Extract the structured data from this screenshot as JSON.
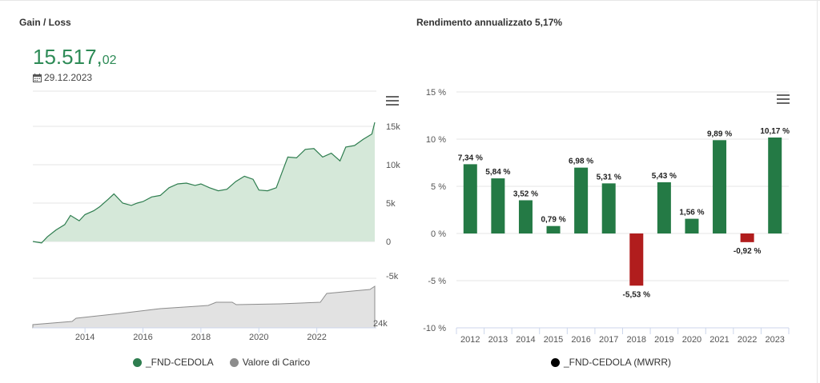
{
  "left_panel": {
    "title": "Gain / Loss",
    "value_int": "15.517,",
    "value_dec": "02",
    "date": "29.12.2023",
    "legend": [
      {
        "label": "_FND-CEDOLA",
        "color": "#2e7d4f"
      },
      {
        "label": "Valore di Carico",
        "color": "#8c8c8c"
      }
    ]
  },
  "right_panel": {
    "title": "Rendimento annualizzato 5,17%",
    "legend": [
      {
        "label": "_FND-CEDOLA (MWRR)",
        "color": "#000000"
      }
    ]
  },
  "chart_data": [
    {
      "type": "area",
      "title": "Gain / Loss",
      "x_ticks": [
        "2014",
        "2016",
        "2018",
        "2020",
        "2022"
      ],
      "y_ticks": [
        "15k",
        "10k",
        "5k",
        "0",
        "-5k"
      ],
      "ylim": [
        -5000,
        15000
      ],
      "xlim": [
        2012.2,
        2024.0
      ],
      "series": [
        {
          "name": "_FND-CEDOLA",
          "color": "#2e7d4f",
          "x": [
            2012.2,
            2012.5,
            2012.7,
            2013.0,
            2013.3,
            2013.5,
            2013.8,
            2014.0,
            2014.3,
            2014.5,
            2014.8,
            2015.0,
            2015.3,
            2015.6,
            2015.8,
            2016.0,
            2016.3,
            2016.6,
            2016.9,
            2017.2,
            2017.5,
            2017.8,
            2018.0,
            2018.3,
            2018.6,
            2018.9,
            2019.2,
            2019.5,
            2019.8,
            2020.0,
            2020.3,
            2020.6,
            2020.8,
            2021.0,
            2021.3,
            2021.6,
            2021.9,
            2022.2,
            2022.5,
            2022.8,
            2023.0,
            2023.3,
            2023.6,
            2023.9,
            2024.0
          ],
          "values": [
            0,
            -200,
            600,
            1500,
            2200,
            3400,
            2700,
            3500,
            4000,
            4500,
            5500,
            6200,
            5000,
            4700,
            5000,
            5200,
            5800,
            6000,
            7000,
            7500,
            7600,
            7300,
            7500,
            7000,
            6600,
            6800,
            7800,
            8500,
            8100,
            6700,
            6600,
            7000,
            9000,
            11000,
            10900,
            12000,
            12100,
            11000,
            11500,
            10500,
            12300,
            12500,
            13300,
            14000,
            15517
          ]
        },
        {
          "name": "Valore di Carico",
          "color": "#8c8c8c",
          "values_label": "24k"
        }
      ]
    },
    {
      "type": "bar",
      "title": "Rendimento annualizzato 5,17%",
      "categories": [
        "2012",
        "2013",
        "2014",
        "2015",
        "2016",
        "2017",
        "2018",
        "2019",
        "2020",
        "2021",
        "2022",
        "2023"
      ],
      "values": [
        7.34,
        5.84,
        3.52,
        0.79,
        6.98,
        5.31,
        -5.53,
        5.43,
        1.56,
        9.89,
        -0.92,
        10.17
      ],
      "labels": [
        "7,34 %",
        "5,84 %",
        "3,52 %",
        "0,79 %",
        "6,98 %",
        "5,31 %",
        "-5,53 %",
        "5,43 %",
        "1,56 %",
        "9,89 %",
        "-0,92 %",
        "10,17 %"
      ],
      "y_ticks": [
        "15 %",
        "10 %",
        "5 %",
        "0 %",
        "-5 %",
        "-10 %"
      ],
      "ylim": [
        -10,
        15
      ],
      "positive_color": "#247a45",
      "negative_color": "#b11d1d",
      "series": [
        {
          "name": "_FND-CEDOLA (MWRR)"
        }
      ]
    }
  ]
}
